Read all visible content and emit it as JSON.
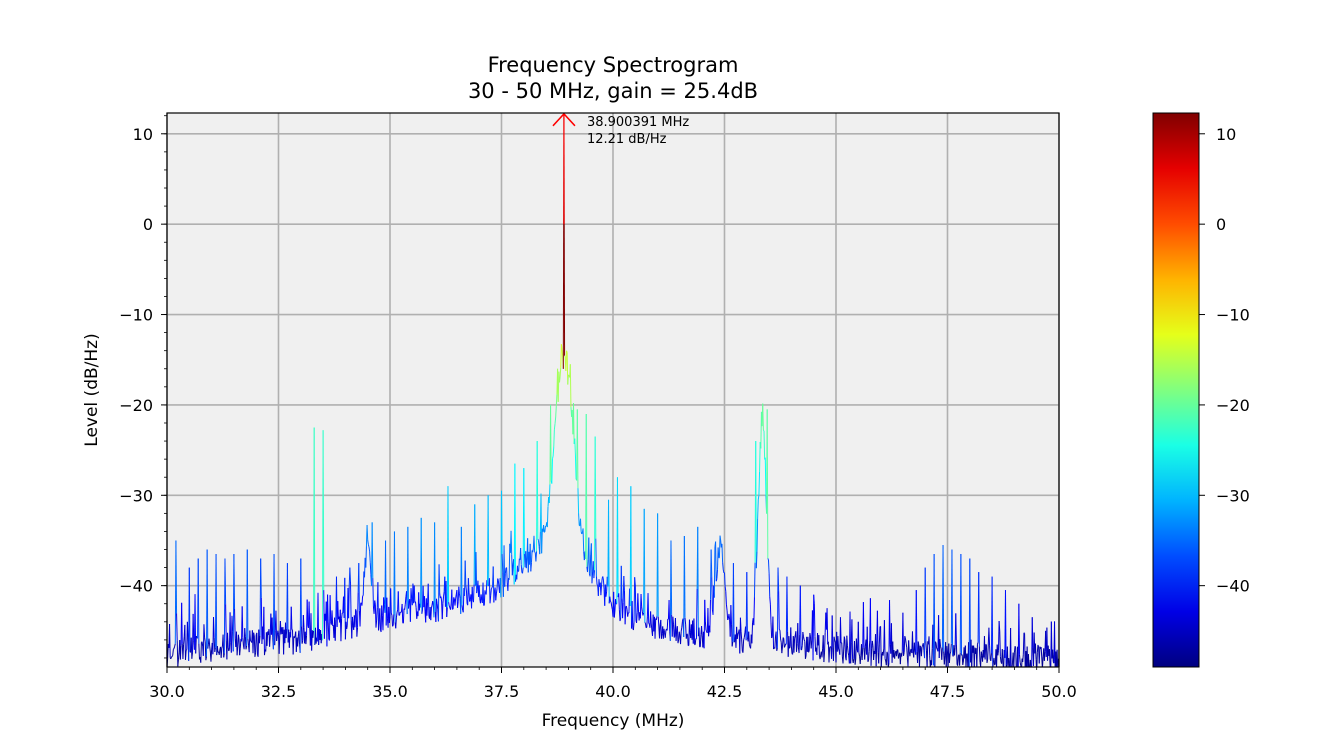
{
  "chart_data": {
    "type": "line",
    "title": "Frequency Spectrogram",
    "subtitle": "30 - 50 MHz, gain = 25.4dB",
    "xlabel": "Frequency (MHz)",
    "ylabel": "Level (dB/Hz)",
    "xlim": [
      30.0,
      50.0
    ],
    "ylim": [
      -49,
      12.3
    ],
    "xticks": [
      "30.0",
      "32.5",
      "35.0",
      "37.5",
      "40.0",
      "42.5",
      "45.0",
      "47.5",
      "50.0"
    ],
    "xtick_values": [
      30.0,
      32.5,
      35.0,
      37.5,
      40.0,
      42.5,
      45.0,
      47.5,
      50.0
    ],
    "yticks": [
      "10",
      "0",
      "−10",
      "−20",
      "−30",
      "−40"
    ],
    "ytick_values": [
      10,
      0,
      -10,
      -20,
      -30,
      -40
    ],
    "grid": true,
    "colormap": "jet",
    "background_color": "#f0f0f0",
    "peak_annotation": {
      "frequency_mhz": 38.900391,
      "level_db": 12.21,
      "label_line1": "38.900391 MHz",
      "label_line2": "12.21 dB/Hz",
      "color": "#ff0000"
    },
    "colorbar": {
      "range": [
        -49,
        12.3
      ],
      "ticks": [
        "10",
        "0",
        "−10",
        "−20",
        "−30",
        "−40"
      ],
      "tick_values": [
        10,
        0,
        -10,
        -20,
        -30,
        -40
      ]
    },
    "series": [
      {
        "noise_floor": [
          [
            30.0,
            -47.5
          ],
          [
            31.0,
            -46.8
          ],
          [
            32.0,
            -46.3
          ],
          [
            33.0,
            -46.0
          ],
          [
            34.0,
            -44.5
          ],
          [
            35.0,
            -43.5
          ],
          [
            36.0,
            -42.5
          ],
          [
            37.0,
            -41.0
          ],
          [
            37.5,
            -40.0
          ],
          [
            38.0,
            -38.0
          ],
          [
            38.5,
            -35.0
          ],
          [
            38.9,
            -30.0
          ],
          [
            39.3,
            -36.0
          ],
          [
            39.7,
            -40.0
          ],
          [
            40.0,
            -42.0
          ],
          [
            40.5,
            -43.5
          ],
          [
            41.0,
            -44.5
          ],
          [
            42.0,
            -45.5
          ],
          [
            43.0,
            -46.0
          ],
          [
            44.0,
            -46.5
          ],
          [
            45.0,
            -47.0
          ],
          [
            46.0,
            -47.5
          ],
          [
            47.0,
            -47.7
          ],
          [
            48.0,
            -47.8
          ],
          [
            49.0,
            -48.0
          ],
          [
            50.0,
            -48.3
          ]
        ],
        "spurs": [
          [
            30.2,
            -35.0
          ],
          [
            30.5,
            -38.0
          ],
          [
            30.7,
            -37.0
          ],
          [
            30.9,
            -36.0
          ],
          [
            31.1,
            -36.5
          ],
          [
            31.3,
            -37.0
          ],
          [
            31.5,
            -36.5
          ],
          [
            31.8,
            -36.0
          ],
          [
            32.1,
            -37.0
          ],
          [
            32.4,
            -36.5
          ],
          [
            32.7,
            -37.5
          ],
          [
            33.0,
            -37.0
          ],
          [
            33.3,
            -22.5
          ],
          [
            33.5,
            -22.8
          ],
          [
            33.8,
            -39.0
          ],
          [
            34.1,
            -38.0
          ],
          [
            34.3,
            -37.5
          ],
          [
            34.6,
            -33.0
          ],
          [
            34.9,
            -35.0
          ],
          [
            35.1,
            -34.0
          ],
          [
            35.4,
            -33.5
          ],
          [
            35.7,
            -32.5
          ],
          [
            36.0,
            -33.0
          ],
          [
            36.3,
            -29.0
          ],
          [
            36.6,
            -33.5
          ],
          [
            36.9,
            -31.0
          ],
          [
            37.2,
            -30.0
          ],
          [
            37.5,
            -29.5
          ],
          [
            37.8,
            -26.5
          ],
          [
            38.0,
            -27.0
          ],
          [
            38.3,
            -24.0
          ],
          [
            38.6,
            -20.0
          ],
          [
            38.75,
            -16.0
          ],
          [
            39.05,
            -15.5
          ],
          [
            39.2,
            -20.5
          ],
          [
            39.4,
            -21.0
          ],
          [
            39.6,
            -23.5
          ],
          [
            39.9,
            -30.5
          ],
          [
            40.1,
            -28.0
          ],
          [
            40.4,
            -29.0
          ],
          [
            40.7,
            -31.5
          ],
          [
            41.0,
            -32.0
          ],
          [
            41.3,
            -35.0
          ],
          [
            41.6,
            -34.5
          ],
          [
            41.9,
            -33.5
          ],
          [
            42.2,
            -36.0
          ],
          [
            42.4,
            -35.0
          ],
          [
            42.7,
            -37.5
          ],
          [
            43.0,
            -38.5
          ],
          [
            43.2,
            -24.0
          ],
          [
            43.45,
            -20.5
          ],
          [
            43.7,
            -38.0
          ],
          [
            43.9,
            -39.0
          ],
          [
            44.2,
            -40.0
          ],
          [
            44.5,
            -41.0
          ],
          [
            44.8,
            -42.5
          ],
          [
            45.1,
            -43.5
          ],
          [
            45.5,
            -44.0
          ],
          [
            46.0,
            -44.5
          ],
          [
            46.5,
            -43.0
          ],
          [
            46.8,
            -40.5
          ],
          [
            47.0,
            -38.0
          ],
          [
            47.2,
            -36.5
          ],
          [
            47.4,
            -35.5
          ],
          [
            47.6,
            -36.0
          ],
          [
            47.8,
            -36.5
          ],
          [
            48.0,
            -37.0
          ],
          [
            48.2,
            -38.5
          ],
          [
            48.5,
            -39.0
          ],
          [
            48.8,
            -40.5
          ],
          [
            49.1,
            -42.0
          ],
          [
            49.4,
            -43.5
          ],
          [
            49.7,
            -45.0
          ]
        ],
        "bumps": [
          [
            34.5,
            -35.5,
            0.12
          ],
          [
            38.9,
            -13.0,
            0.25
          ],
          [
            42.4,
            -35.0,
            0.15
          ],
          [
            43.35,
            -20.5,
            0.13
          ]
        ],
        "main_peak": [
          38.900391,
          12.21
        ]
      }
    ]
  }
}
